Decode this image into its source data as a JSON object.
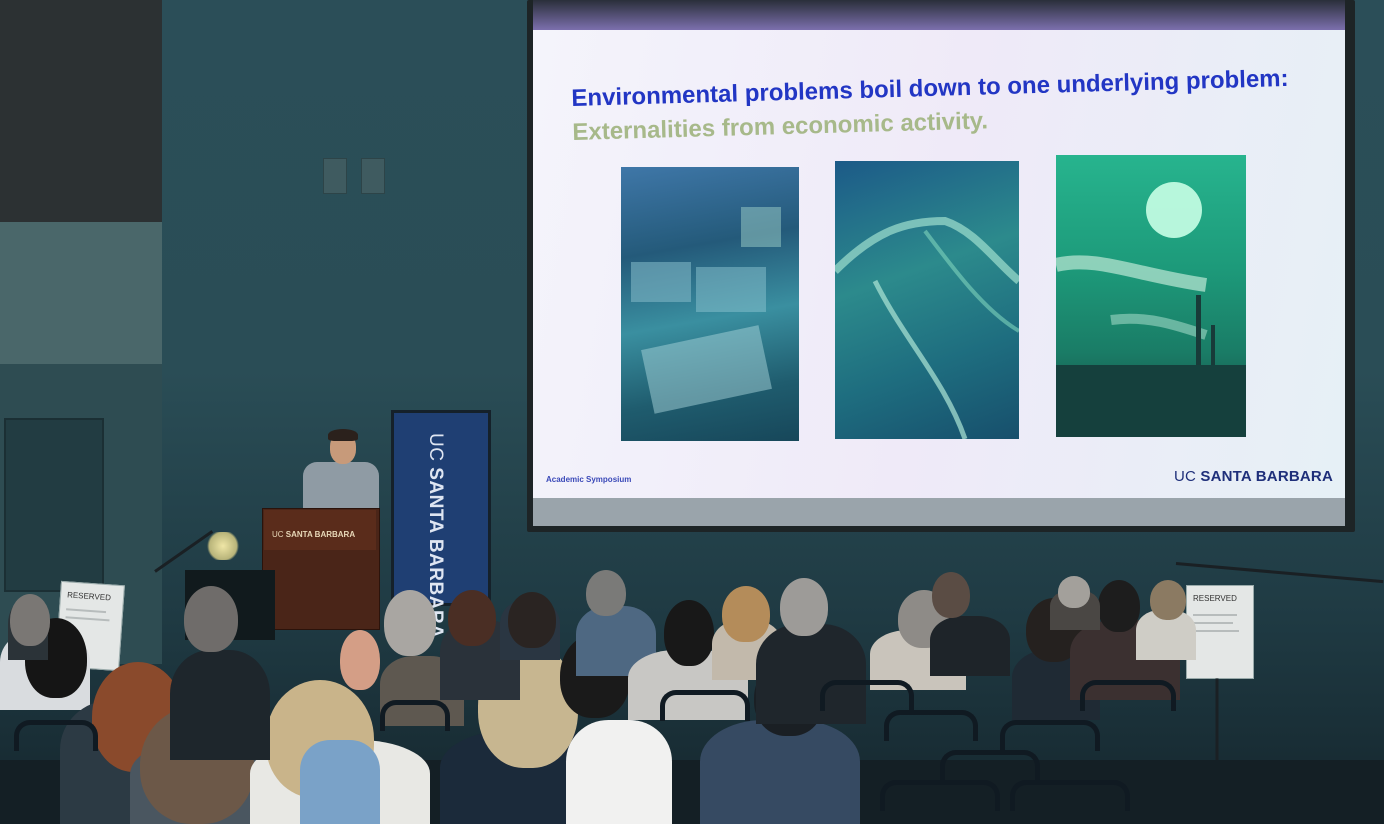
{
  "slide": {
    "title_part1": "Environmental problems boil down to one underlying problem: ",
    "title_accent": "Externalities from economic activity.",
    "footer_left": "Academic Symposium",
    "logo_light": "UC ",
    "logo_bold": "SANTA BARBARA"
  },
  "podium": {
    "logo_light": "UC ",
    "logo_bold": "SANTA BARBARA"
  },
  "banner": {
    "logo_light": "UC ",
    "logo_bold": "SANTA BARBARA"
  },
  "signs": {
    "left_title": "RESERVED",
    "right_title": "RESERVED"
  },
  "colors": {
    "slide_title": "#2236c4",
    "slide_accent": "#a7b98a",
    "wall": "#2b4e58",
    "podium": "#4a2518",
    "banner": "#1f3f73"
  }
}
